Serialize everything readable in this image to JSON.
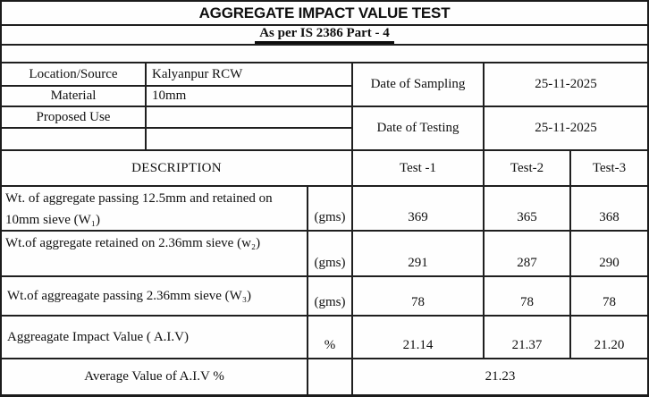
{
  "title": "AGGREGATE IMPACT VALUE TEST",
  "subtitle": "As per IS 2386 Part - 4",
  "info": {
    "location_label": "Location/Source",
    "location_value": "Kalyanpur RCW",
    "material_label": "Material",
    "material_value": "10mm",
    "proposed_use_label": "Proposed Use",
    "proposed_use_value": "",
    "date_sampling_label": "Date of Sampling",
    "date_sampling_value": "25-11-2025",
    "date_testing_label": "Date of Testing",
    "date_testing_value": "25-11-2025"
  },
  "table": {
    "description_header": "DESCRIPTION",
    "test_headers": [
      "Test -1",
      "Test-2",
      "Test-3"
    ],
    "rows": [
      {
        "label": "Wt. of aggregate passing 12.5mm and retained on 10mm sieve (W₁)",
        "unit": "(gms)",
        "values": [
          "369",
          "365",
          "368"
        ]
      },
      {
        "label": "Wt.of aggregate retained on 2.36mm sieve (w₂)",
        "unit": "(gms)",
        "values": [
          "291",
          "287",
          "290"
        ]
      },
      {
        "label": "Wt.of aggreagate passing 2.36mm sieve (W₃)",
        "unit": "(gms)",
        "values": [
          "78",
          "78",
          "78"
        ]
      },
      {
        "label": "Aggreagate Impact Value ( A.I.V)",
        "unit": "%",
        "values": [
          "21.14",
          "21.37",
          "21.20"
        ]
      }
    ],
    "average_label": "Average Value of A.I.V %",
    "average_value": "21.23"
  }
}
